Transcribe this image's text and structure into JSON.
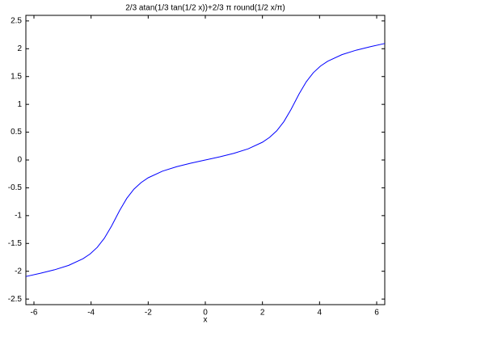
{
  "chart_data": {
    "type": "line",
    "title": "2/3 atan(1/3 tan(1/2 x))+2/3 π round(1/2 x/π)",
    "x_label": "x",
    "x": [
      -6.2832,
      -5.7832,
      -5.2832,
      -4.7832,
      -4.2832,
      -4.0332,
      -3.7832,
      -3.5332,
      -3.2832,
      -3.1416,
      -3,
      -2.75,
      -2.5,
      -2.25,
      -2,
      -1.5,
      -1,
      -0.5,
      0,
      0.5,
      1,
      1.5,
      2,
      2.25,
      2.5,
      2.75,
      3,
      3.1416,
      3.2832,
      3.5332,
      3.7832,
      4.0332,
      4.2832,
      4.7832,
      5.2832,
      5.7832,
      6.2832
    ],
    "series": [
      {
        "color": "#0000ff",
        "values": [
          -2.0944,
          -2.0378,
          -1.9743,
          -1.8937,
          -1.775,
          -1.6883,
          -1.5697,
          -1.4052,
          -1.1869,
          -1.0472,
          -0.9075,
          -0.6892,
          -0.5247,
          -0.4061,
          -0.3194,
          -0.2007,
          -0.1201,
          -0.0566,
          0,
          0.0566,
          0.1201,
          0.2007,
          0.3194,
          0.4061,
          0.5247,
          0.6892,
          0.9075,
          1.0472,
          1.1869,
          1.4052,
          1.5697,
          1.6883,
          1.775,
          1.8937,
          1.9743,
          2.0378,
          2.0944
        ]
      }
    ],
    "xlim": [
      -6.2832,
      6.2832
    ],
    "ylim": [
      -2.6,
      2.6
    ],
    "xticks": [
      -6,
      -4,
      -2,
      0,
      2,
      4,
      6
    ],
    "yticks": [
      -2.5,
      -2,
      -1.5,
      -1,
      -0.5,
      0,
      0.5,
      1,
      1.5,
      2,
      2.5
    ],
    "grid": false
  }
}
